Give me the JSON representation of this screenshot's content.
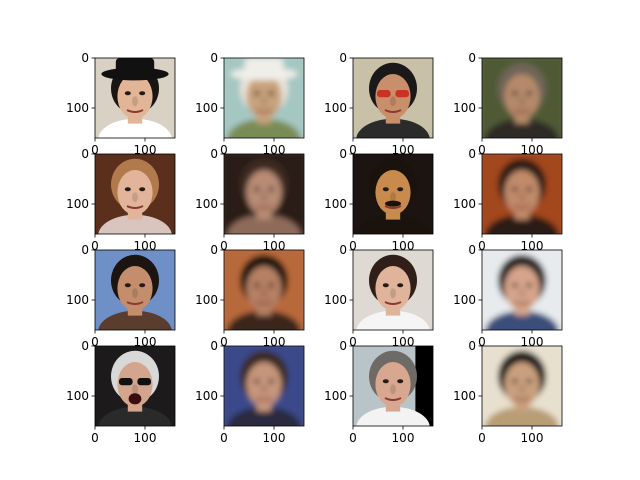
{
  "chart_data": {
    "type": "image-grid",
    "rows": 4,
    "cols": 4,
    "image_extent": [
      0,
      160,
      160,
      0
    ],
    "xticks": [
      0,
      100
    ],
    "yticks": [
      0,
      100
    ],
    "panels": [
      {
        "kind": "photo",
        "bg": "#d9d2c4",
        "skin": "#e2b596",
        "hair": "#1a1412",
        "shirt": "#ffffff",
        "hat": "#111111"
      },
      {
        "kind": "generated",
        "bg": "#a5c7c2",
        "skin": "#c8a27c",
        "hair": "#e9e3d9",
        "shirt": "#7a8c55",
        "hat": "#f0eee8"
      },
      {
        "kind": "photo",
        "bg": "#c9c0a8",
        "skin": "#c88f6a",
        "hair": "#1a1818",
        "shirt": "#2b2b2b",
        "glasses": "#c83324"
      },
      {
        "kind": "generated",
        "bg": "#4f5a36",
        "skin": "#b58a6b",
        "hair": "#6f6559",
        "shirt": "#2f2a25"
      },
      {
        "kind": "photo",
        "bg": "#5a2f1c",
        "skin": "#e2b59b",
        "hair": "#b07a4c",
        "shirt": "#d9c4be"
      },
      {
        "kind": "generated",
        "bg": "#2a1d16",
        "skin": "#b88b74",
        "hair": "#3d2a20",
        "shirt": "#8e6b5a"
      },
      {
        "kind": "photo",
        "bg": "#1b1410",
        "skin": "#c88a4d",
        "hair": "#1a120c",
        "shirt": "#1a120c",
        "mustache": "#1a120c"
      },
      {
        "kind": "generated",
        "bg": "#a3471c",
        "skin": "#c18a6a",
        "hair": "#2a1b13",
        "shirt": "#2a1b13"
      },
      {
        "kind": "photo",
        "bg": "#6f8fc7",
        "skin": "#c48e6d",
        "hair": "#1b1411",
        "shirt": "#5a3d2e"
      },
      {
        "kind": "generated",
        "bg": "#b8693a",
        "skin": "#b58064",
        "hair": "#1d1410",
        "shirt": "#3a261c"
      },
      {
        "kind": "photo",
        "bg": "#ded9d3",
        "skin": "#e0b39b",
        "hair": "#2f1f18",
        "shirt": "#f5f5f5"
      },
      {
        "kind": "generated",
        "bg": "#e7ebee",
        "skin": "#d6a48a",
        "hair": "#2a2320",
        "shirt": "#3b4e7a"
      },
      {
        "kind": "photo",
        "bg": "#1c1a1a",
        "skin": "#d4a58d",
        "hair": "#d8d8d8",
        "shirt": "#2a2a2a",
        "glasses": "#111111",
        "mouth_open": "true"
      },
      {
        "kind": "generated",
        "bg": "#3a4a8a",
        "skin": "#c6957b",
        "hair": "#3a2a20",
        "shirt": "#2a2a40"
      },
      {
        "kind": "photo",
        "bg": "#b9c4c9",
        "skin": "#d7a88f",
        "hair": "#6e6a66",
        "shirt": "#f3f3f3",
        "right_black": "true"
      },
      {
        "kind": "generated",
        "bg": "#e8e0cf",
        "skin": "#c9a07e",
        "hair": "#1a1512",
        "shirt": "#b89d74"
      }
    ]
  }
}
